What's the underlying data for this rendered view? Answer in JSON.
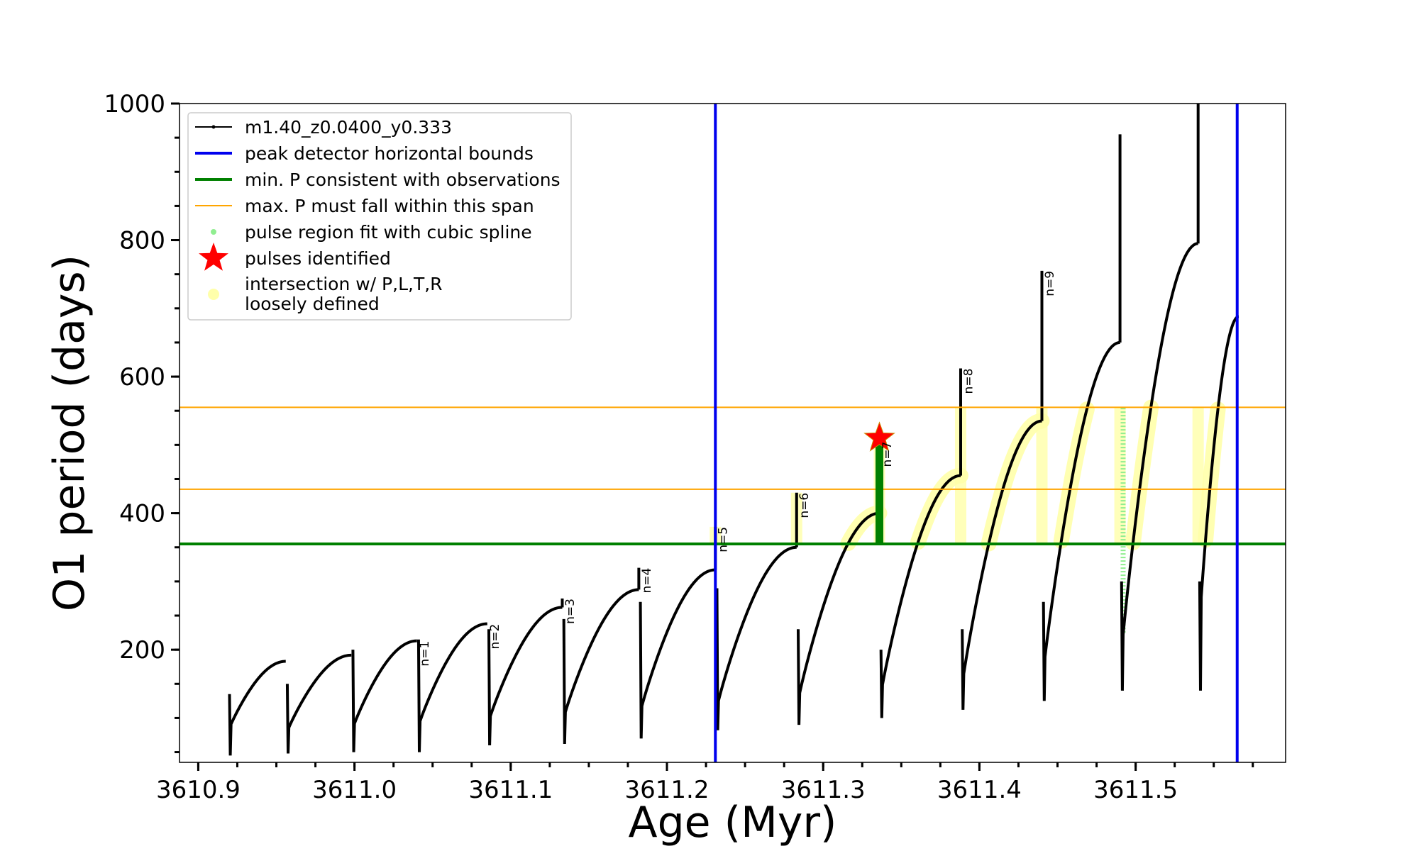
{
  "chart_data": {
    "type": "line",
    "xlabel": "Age (Myr)",
    "ylabel": "O1 period (days)",
    "xlim": [
      3610.888,
      3611.596
    ],
    "ylim": [
      35,
      1000
    ],
    "x_ticks": [
      3610.9,
      3611.0,
      3611.1,
      3611.2,
      3611.3,
      3611.4,
      3611.5
    ],
    "x_tick_labels": [
      "3610.9",
      "3611.0",
      "3611.1",
      "3611.2",
      "3611.3",
      "3611.4",
      "3611.5"
    ],
    "y_ticks": [
      200,
      400,
      600,
      800,
      1000
    ],
    "y_tick_labels": [
      "200",
      "400",
      "600",
      "800",
      "1000"
    ],
    "grid": false,
    "legend_position": "top-left",
    "legend": [
      {
        "label": "m1.40_z0.0400_y0.333",
        "color": "#000000",
        "marker": "line-dot"
      },
      {
        "label": "peak detector horizontal bounds",
        "color": "#0000ee",
        "marker": "line"
      },
      {
        "label": "min. P consistent with observations",
        "color": "#008000",
        "marker": "line"
      },
      {
        "label": "max. P must fall within this span",
        "color": "#ffa500",
        "marker": "thin-line"
      },
      {
        "label": "pulse region fit with cubic spline",
        "color": "#90ee90",
        "marker": "dot"
      },
      {
        "label": "pulses identified",
        "color": "#ff0000",
        "marker": "star"
      },
      {
        "label_lines": [
          "intersection w/ P,L,T,R",
          "loosely defined"
        ],
        "color": "#ffffaa",
        "marker": "big-dot"
      }
    ],
    "reference_lines": {
      "vertical_blue": [
        3611.231,
        3611.565
      ],
      "horizontal_green": 355,
      "horizontal_orange": [
        435,
        555
      ]
    },
    "series": [
      {
        "name": "m1.40_z0.0400_y0.333",
        "color": "#000000",
        "pulses": [
          {
            "start": 3610.92,
            "end": 3610.956,
            "y0": 85,
            "ypeak": 183,
            "spike_low": 45,
            "spike_high": 135
          },
          {
            "start": 3610.957,
            "end": 3610.998,
            "y0": 80,
            "ypeak": 192,
            "spike_low": 48,
            "spike_high": 150
          },
          {
            "start": 3610.999,
            "end": 3611.04,
            "y0": 85,
            "ypeak": 213,
            "spike_low": 50,
            "spike_high": 200
          },
          {
            "start": 3611.041,
            "end": 3611.085,
            "y0": 88,
            "ypeak": 238,
            "spike_low": 50,
            "spike_high": 215
          },
          {
            "start": 3611.086,
            "end": 3611.133,
            "y0": 95,
            "ypeak": 262,
            "spike_low": 60,
            "spike_high": 230
          },
          {
            "start": 3611.134,
            "end": 3611.182,
            "y0": 100,
            "ypeak": 288,
            "spike_low": 62,
            "spike_high": 245
          },
          {
            "start": 3611.183,
            "end": 3611.231,
            "y0": 108,
            "ypeak": 317,
            "spike_low": 70,
            "spike_high": 270
          },
          {
            "start": 3611.232,
            "end": 3611.283,
            "y0": 115,
            "ypeak": 350,
            "spike_low": 82,
            "spike_high": 290
          },
          {
            "start": 3611.284,
            "end": 3611.336,
            "y0": 125,
            "ypeak": 400,
            "spike_low": 90,
            "spike_high": 230
          },
          {
            "start": 3611.337,
            "end": 3611.388,
            "y0": 135,
            "ypeak": 455,
            "spike_low": 100,
            "spike_high": 200
          },
          {
            "start": 3611.389,
            "end": 3611.44,
            "y0": 148,
            "ypeak": 535,
            "spike_low": 112,
            "spike_high": 230
          },
          {
            "start": 3611.441,
            "end": 3611.49,
            "y0": 168,
            "ypeak": 650,
            "spike_low": 125,
            "spike_high": 270
          },
          {
            "start": 3611.491,
            "end": 3611.54,
            "y0": 195,
            "ypeak": 795,
            "spike_low": 140,
            "spike_high": 300
          },
          {
            "start": 3611.541,
            "end": 3611.566,
            "y0": 240,
            "ypeak": 688,
            "spike_low": 140,
            "spike_high": 300
          }
        ],
        "spike_tops": [
          {
            "x": 3611.04,
            "y": 213
          },
          {
            "x": 3611.085,
            "y": 238
          },
          {
            "x": 3611.133,
            "y": 275
          },
          {
            "x": 3611.182,
            "y": 320
          },
          {
            "x": 3611.231,
            "y": 380
          },
          {
            "x": 3611.283,
            "y": 430
          },
          {
            "x": 3611.336,
            "y": 505
          },
          {
            "x": 3611.388,
            "y": 612
          },
          {
            "x": 3611.44,
            "y": 755
          },
          {
            "x": 3611.49,
            "y": 955
          },
          {
            "x": 3611.54,
            "y": 1000
          }
        ]
      }
    ],
    "pulse_labels": [
      {
        "text": "n=1",
        "x": 3611.042,
        "y": 215
      },
      {
        "text": "n=2",
        "x": 3611.087,
        "y": 240
      },
      {
        "text": "n=3",
        "x": 3611.135,
        "y": 277
      },
      {
        "text": "n=4",
        "x": 3611.184,
        "y": 322
      },
      {
        "text": "n=5",
        "x": 3611.233,
        "y": 382
      },
      {
        "text": "n=6",
        "x": 3611.285,
        "y": 432
      },
      {
        "text": "n=7",
        "x": 3611.338,
        "y": 507
      },
      {
        "text": "n=8",
        "x": 3611.39,
        "y": 614
      },
      {
        "text": "n=9",
        "x": 3611.442,
        "y": 757
      }
    ],
    "pulses_identified": [
      {
        "x": 3611.336,
        "y": 510
      }
    ],
    "green_highlight": {
      "x": 3611.336,
      "ymin": 355,
      "ymax": 500
    },
    "lightgreen_spline": {
      "x": 3611.492,
      "ymin": 225,
      "ymax": 555
    }
  }
}
